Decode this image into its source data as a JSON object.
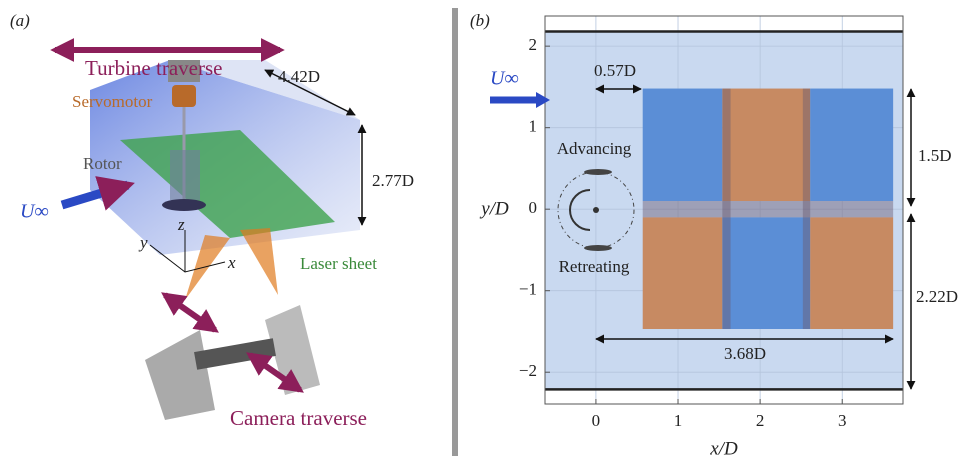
{
  "panel_a": {
    "label": "(a)",
    "turbine_traverse": "Turbine traverse",
    "servomotor": "Servomotor",
    "rotor": "Rotor",
    "u_inf": "U∞",
    "laser_sheet": "Laser sheet",
    "camera_traverse": "Camera traverse",
    "dim_length": "4.42D",
    "dim_height": "2.77D",
    "axis_x": "x",
    "axis_y": "y",
    "axis_z": "z"
  },
  "chart_data": {
    "type": "field-of-view",
    "label": "(b)",
    "xlabel": "x/D",
    "ylabel": "y/D",
    "xlim": [
      -0.62,
      3.74
    ],
    "ylim": [
      -2.39,
      2.37
    ],
    "xticks": [
      0,
      1,
      2,
      3
    ],
    "yticks": [
      {
        "value": -2,
        "label": "−2"
      },
      {
        "value": -1,
        "label": "−1"
      },
      0,
      1,
      2
    ],
    "grid": true,
    "walls": [
      2.18,
      -2.21
    ],
    "tiles": [
      {
        "x": [
          0.57,
          1.54
        ],
        "y": [
          0.1,
          1.48
        ],
        "color": "#5b8ed6"
      },
      {
        "x": [
          1.54,
          2.61
        ],
        "y": [
          0.1,
          1.48
        ],
        "color": "#c78a62"
      },
      {
        "x": [
          2.61,
          3.62
        ],
        "y": [
          0.1,
          1.48
        ],
        "color": "#5b8ed6"
      },
      {
        "x": [
          0.57,
          1.54
        ],
        "y": [
          -1.47,
          -0.1
        ],
        "color": "#c78a62"
      },
      {
        "x": [
          1.54,
          2.61
        ],
        "y": [
          -1.47,
          -0.1
        ],
        "color": "#5b8ed6"
      },
      {
        "x": [
          2.61,
          3.62
        ],
        "y": [
          -1.47,
          -0.1
        ],
        "color": "#c78a62"
      }
    ],
    "overlaps": [
      {
        "x": [
          0.57,
          3.62
        ],
        "y": [
          -0.1,
          0.1
        ]
      },
      {
        "x": [
          1.54,
          1.64
        ],
        "y": [
          -1.47,
          1.48
        ]
      },
      {
        "x": [
          2.52,
          2.61
        ],
        "y": [
          -1.47,
          1.48
        ]
      }
    ],
    "annotations": {
      "u_inf": "U∞",
      "offset": "0.57D",
      "advancing": "Advancing",
      "retreating": "Retreating",
      "upper": "1.5D",
      "lower": "2.22D",
      "width": "3.68D"
    }
  }
}
